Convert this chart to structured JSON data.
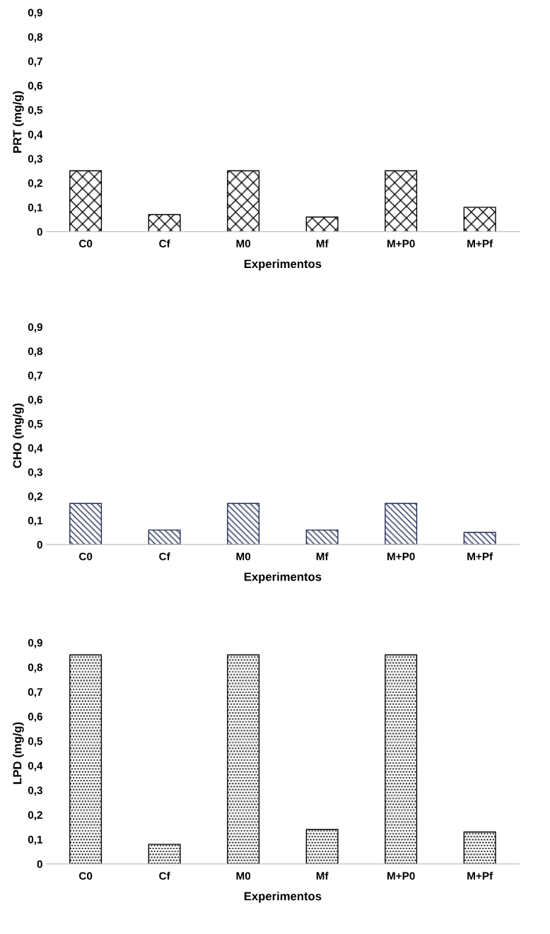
{
  "chart_data": [
    {
      "type": "bar",
      "ylabel": "PRT (mg/g)",
      "xlabel": "Experimentos",
      "categories": [
        "C0",
        "Cf",
        "M0",
        "Mf",
        "M+P0",
        "M+Pf"
      ],
      "values": [
        0.25,
        0.07,
        0.25,
        0.06,
        0.25,
        0.1
      ],
      "color": "#000000",
      "ylim": [
        0,
        0.9
      ],
      "yticks": [
        0,
        {
          "value": 0.1,
          "label": "0,1"
        },
        {
          "value": 0.2,
          "label": "0,2"
        },
        {
          "value": 0.3,
          "label": "0,3"
        },
        {
          "value": 0.4,
          "label": "0,4"
        },
        {
          "value": 0.5,
          "label": "0,5"
        },
        {
          "value": 0.6,
          "label": "0,6"
        },
        {
          "value": 0.7,
          "label": "0,7"
        },
        {
          "value": 0.8,
          "label": "0,8"
        },
        {
          "value": 0.9,
          "label": "0,9"
        }
      ],
      "grid": false,
      "legend": false
    },
    {
      "type": "bar",
      "ylabel": "CHO (mg/g)",
      "xlabel": "Experimentos",
      "categories": [
        "C0",
        "Cf",
        "M0",
        "Mf",
        "M+P0",
        "M+Pf"
      ],
      "values": [
        0.17,
        0.06,
        0.17,
        0.06,
        0.17,
        0.05
      ],
      "color": "#1f2a55",
      "ylim": [
        0,
        0.9
      ],
      "yticks": [
        0,
        {
          "value": 0.1,
          "label": "0,1"
        },
        {
          "value": 0.2,
          "label": "0,2"
        },
        {
          "value": 0.3,
          "label": "0,3"
        },
        {
          "value": 0.4,
          "label": "0,4"
        },
        {
          "value": 0.5,
          "label": "0,5"
        },
        {
          "value": 0.6,
          "label": "0,6"
        },
        {
          "value": 0.7,
          "label": "0,7"
        },
        {
          "value": 0.8,
          "label": "0,8"
        },
        {
          "value": 0.9,
          "label": "0,9"
        }
      ],
      "grid": false,
      "legend": false
    },
    {
      "type": "bar",
      "ylabel": "LPD (mg/g)",
      "xlabel": "Experimentos",
      "categories": [
        "C0",
        "Cf",
        "M0",
        "Mf",
        "M+P0",
        "M+Pf"
      ],
      "values": [
        0.85,
        0.08,
        0.85,
        0.14,
        0.85,
        0.13
      ],
      "color": "#000000",
      "ylim": [
        0,
        0.9
      ],
      "yticks": [
        0,
        {
          "value": 0.1,
          "label": "0,1"
        },
        {
          "value": 0.2,
          "label": "0,2"
        },
        {
          "value": 0.3,
          "label": "0,3"
        },
        {
          "value": 0.4,
          "label": "0,4"
        },
        {
          "value": 0.5,
          "label": "0,5"
        },
        {
          "value": 0.6,
          "label": "0,6"
        },
        {
          "value": 0.7,
          "label": "0,7"
        },
        {
          "value": 0.8,
          "label": "0,8"
        },
        {
          "value": 0.9,
          "label": "0,9"
        }
      ],
      "grid": false,
      "legend": false
    }
  ]
}
